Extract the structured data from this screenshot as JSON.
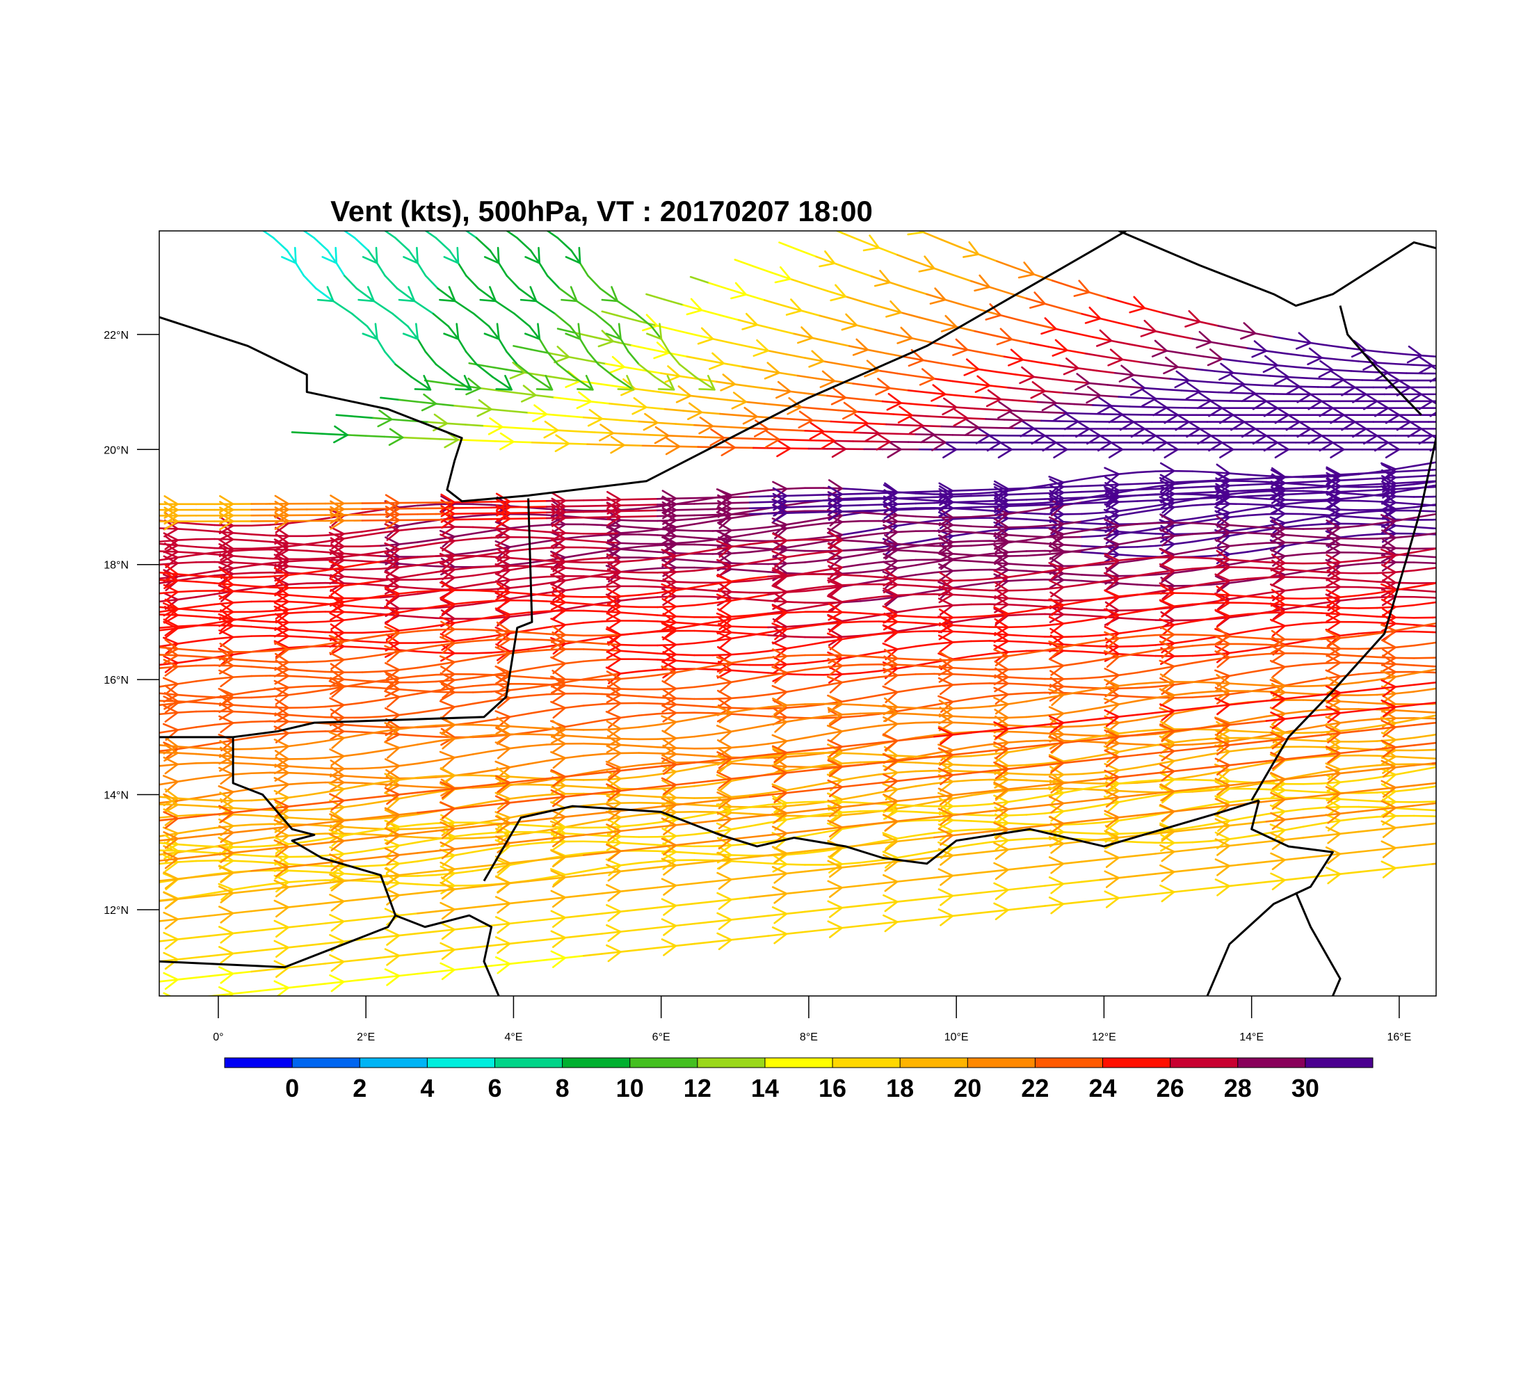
{
  "title": "Vent (kts), 500hPa, VT : 20170207  18:00",
  "map": {
    "lon_range": [
      -0.8,
      16.5
    ],
    "lat_range": [
      10.5,
      23.8
    ],
    "lat_ticks": [
      {
        "value": 22,
        "label": "22°N"
      },
      {
        "value": 20,
        "label": "20°N"
      },
      {
        "value": 18,
        "label": "18°N"
      },
      {
        "value": 16,
        "label": "16°N"
      },
      {
        "value": 14,
        "label": "14°N"
      },
      {
        "value": 12,
        "label": "12°N"
      }
    ],
    "lon_ticks": [
      {
        "value": 0,
        "label": "0°"
      },
      {
        "value": 2,
        "label": "2°E"
      },
      {
        "value": 4,
        "label": "4°E"
      },
      {
        "value": 6,
        "label": "6°E"
      },
      {
        "value": 8,
        "label": "8°E"
      },
      {
        "value": 10,
        "label": "10°E"
      },
      {
        "value": 12,
        "label": "12°E"
      },
      {
        "value": 14,
        "label": "14°E"
      },
      {
        "value": 16,
        "label": "16°E"
      }
    ],
    "borders": [
      [
        [
          -0.8,
          22.3
        ],
        [
          0.4,
          21.8
        ],
        [
          1.2,
          21.3
        ],
        [
          1.2,
          21.0
        ],
        [
          2.3,
          20.7
        ],
        [
          3.3,
          20.2
        ],
        [
          3.2,
          19.8
        ],
        [
          3.1,
          19.3
        ],
        [
          3.3,
          19.1
        ],
        [
          4.2,
          19.2
        ],
        [
          5.8,
          19.45
        ],
        [
          8.0,
          20.9
        ],
        [
          9.6,
          21.8
        ],
        [
          11.9,
          23.5
        ],
        [
          12.3,
          23.8
        ]
      ],
      [
        [
          4.2,
          19.15
        ],
        [
          4.25,
          17.0
        ],
        [
          4.05,
          16.9
        ],
        [
          3.9,
          15.7
        ],
        [
          3.6,
          15.35
        ],
        [
          1.3,
          15.25
        ],
        [
          0.8,
          15.1
        ],
        [
          0.2,
          15.0
        ],
        [
          -0.8,
          15.0
        ]
      ],
      [
        [
          0.2,
          15.0
        ],
        [
          0.2,
          14.2
        ],
        [
          0.6,
          14.0
        ],
        [
          1.0,
          13.4
        ],
        [
          1.3,
          13.3
        ],
        [
          1.0,
          13.2
        ],
        [
          1.4,
          12.9
        ],
        [
          2.2,
          12.6
        ],
        [
          2.4,
          11.9
        ],
        [
          2.8,
          11.7
        ],
        [
          3.4,
          11.9
        ],
        [
          3.7,
          11.7
        ],
        [
          3.6,
          11.1
        ],
        [
          3.8,
          10.5
        ]
      ],
      [
        [
          -0.8,
          11.1
        ],
        [
          0.9,
          11.0
        ],
        [
          1.5,
          11.3
        ],
        [
          2.3,
          11.7
        ],
        [
          2.4,
          11.9
        ]
      ],
      [
        [
          3.6,
          12.5
        ],
        [
          4.1,
          13.6
        ],
        [
          4.8,
          13.8
        ],
        [
          6.0,
          13.7
        ],
        [
          6.8,
          13.3
        ],
        [
          7.3,
          13.1
        ],
        [
          7.8,
          13.25
        ],
        [
          8.5,
          13.1
        ],
        [
          9.0,
          12.9
        ],
        [
          9.6,
          12.8
        ],
        [
          10.0,
          13.2
        ],
        [
          11.0,
          13.4
        ],
        [
          12.0,
          13.1
        ],
        [
          12.8,
          13.4
        ],
        [
          13.6,
          13.7
        ],
        [
          14.1,
          13.9
        ]
      ],
      [
        [
          14.0,
          13.9
        ],
        [
          14.5,
          15.0
        ],
        [
          15.1,
          15.8
        ],
        [
          15.8,
          16.8
        ],
        [
          16.1,
          18.1
        ],
        [
          16.3,
          19.0
        ],
        [
          16.5,
          20.2
        ]
      ],
      [
        [
          14.1,
          13.9
        ],
        [
          14.0,
          13.4
        ],
        [
          14.5,
          13.1
        ],
        [
          15.1,
          13.0
        ],
        [
          14.8,
          12.4
        ],
        [
          14.3,
          12.1
        ],
        [
          13.7,
          11.4
        ],
        [
          13.4,
          10.5
        ]
      ],
      [
        [
          14.6,
          12.3
        ],
        [
          14.8,
          11.7
        ],
        [
          15.2,
          10.8
        ],
        [
          15.1,
          10.5
        ]
      ],
      [
        [
          12.2,
          23.8
        ],
        [
          13.3,
          23.2
        ],
        [
          14.3,
          22.7
        ],
        [
          14.6,
          22.5
        ],
        [
          15.1,
          22.7
        ],
        [
          16.2,
          23.6
        ],
        [
          16.5,
          23.5
        ]
      ],
      [
        [
          15.2,
          22.5
        ],
        [
          15.3,
          22.0
        ],
        [
          15.7,
          21.4
        ],
        [
          16.3,
          20.6
        ]
      ]
    ]
  },
  "colorbar": {
    "colors": [
      "#0000f5",
      "#0066f0",
      "#00b4f5",
      "#00eedd",
      "#00d488",
      "#00b030",
      "#44c020",
      "#9ad81a",
      "#ffff00",
      "#ffd800",
      "#ffb400",
      "#ff8800",
      "#ff5a00",
      "#ff1000",
      "#c80030",
      "#88005a",
      "#4b0090"
    ],
    "labels": [
      "0",
      "2",
      "4",
      "6",
      "8",
      "10",
      "12",
      "14",
      "16",
      "18",
      "20",
      "22",
      "24",
      "26",
      "28",
      "30"
    ]
  },
  "wind_field": {
    "band_speeds_kts": [
      31,
      30,
      29,
      27,
      25,
      23,
      21,
      19,
      17
    ],
    "band_start_lat": [
      18.3,
      17.9,
      17.4,
      16.8,
      16.1,
      15.3,
      14.4,
      13.5,
      12.7
    ],
    "band_end_lat": [
      19.3,
      18.9,
      18.4,
      17.8,
      17.2,
      16.5,
      15.7,
      14.9,
      14.0
    ],
    "band_west_speeds_kts": [
      27,
      26,
      25,
      24,
      23,
      22,
      20,
      18,
      16
    ],
    "jet_lat": 18.9,
    "jet_west_speed_kts": 18,
    "jet_east_speed_kts": 31,
    "north_flow_lat": 20.0,
    "north_flow_west_speed_kts": 8,
    "north_flow_east_speed_kts": 31
  }
}
